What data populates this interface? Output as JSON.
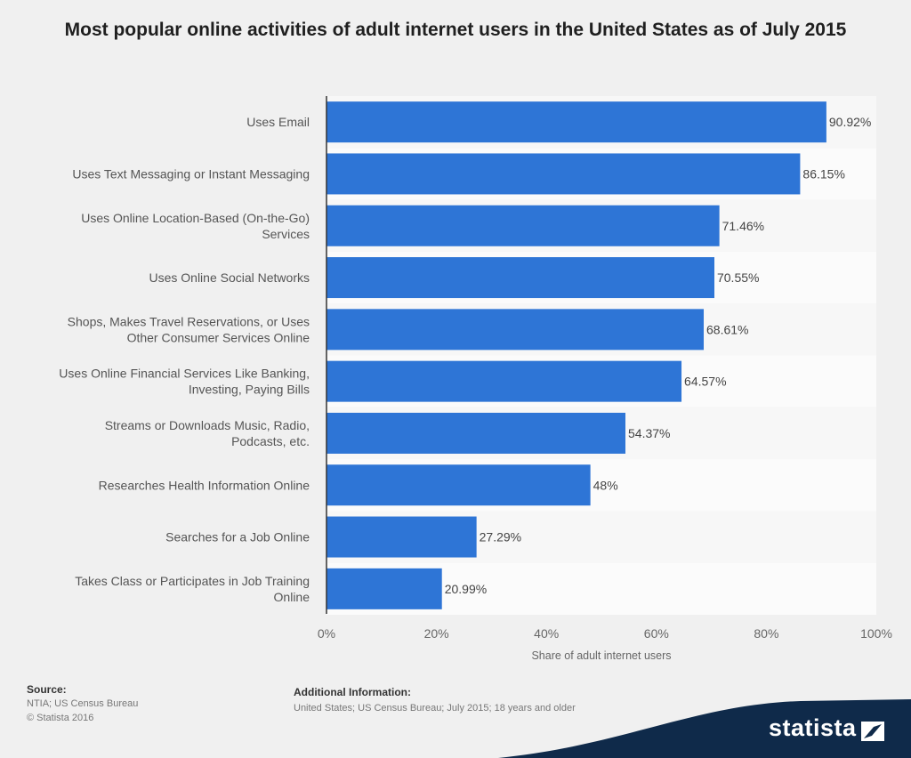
{
  "title": "Most popular online activities of adult internet users in the United States as of July 2015",
  "chart_data": {
    "type": "bar",
    "orientation": "horizontal",
    "title": "Most popular online activities of adult internet users in the United States as of July 2015",
    "categories": [
      [
        "Uses Email"
      ],
      [
        "Uses Text Messaging or Instant Messaging"
      ],
      [
        "Uses Online Location-Based (On-the-Go)",
        "Services"
      ],
      [
        "Uses Online Social Networks"
      ],
      [
        "Shops, Makes Travel Reservations, or Uses",
        "Other Consumer Services Online"
      ],
      [
        "Uses Online Financial Services Like Banking,",
        "Investing, Paying Bills"
      ],
      [
        "Streams or Downloads Music, Radio,",
        "Podcasts, etc."
      ],
      [
        "Researches Health Information Online"
      ],
      [
        "Searches for a Job Online"
      ],
      [
        "Takes Class or Participates in Job Training",
        "Online"
      ]
    ],
    "values": [
      90.92,
      86.15,
      71.46,
      70.55,
      68.61,
      64.57,
      54.37,
      48,
      27.29,
      20.99
    ],
    "value_labels": [
      "90.92%",
      "86.15%",
      "71.46%",
      "70.55%",
      "68.61%",
      "64.57%",
      "54.37%",
      "48%",
      "27.29%",
      "20.99%"
    ],
    "xlim": [
      0,
      100
    ],
    "x_ticks": [
      "0%",
      "20%",
      "40%",
      "60%",
      "80%",
      "100%"
    ],
    "xlabel": "Share of adult internet users",
    "ylabel": "",
    "bar_color": "#2e75d6"
  },
  "footer": {
    "source_heading": "Source:",
    "source_line1": "NTIA; US Census Bureau",
    "source_line2": "© Statista 2016",
    "info_heading": "Additional Information:",
    "info_text": "United States; US Census Bureau; July 2015; 18 years and older"
  },
  "brand": {
    "name": "statista",
    "color": "#0f2a4a"
  }
}
